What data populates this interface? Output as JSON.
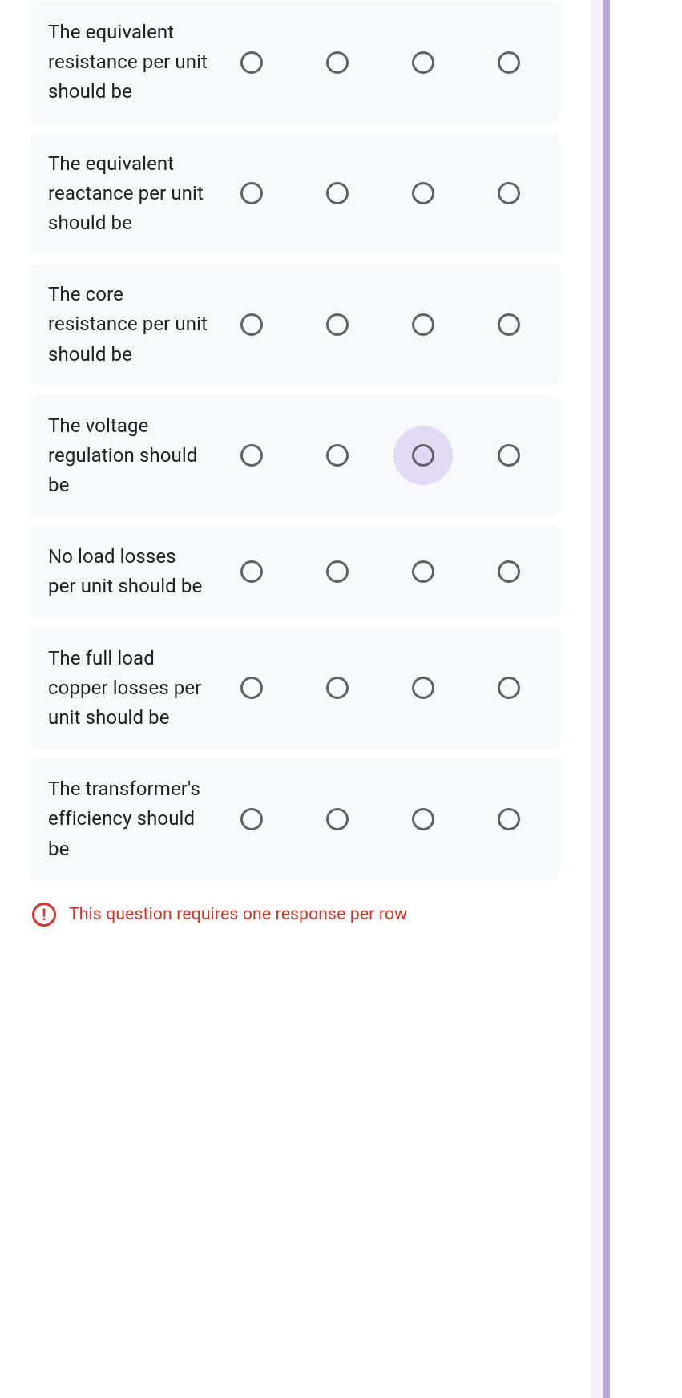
{
  "colors": {
    "row_bg": "#f8f9fa",
    "text": "#202124",
    "radio_border": "#5f6368",
    "ripple": "#d6c8f0",
    "accent": "#673ab7",
    "error": "#d93025",
    "page_bg": "#ffffff"
  },
  "grid": {
    "num_options": 4,
    "rows": [
      {
        "label": "The equivalent resistance per unit should be",
        "highlighted_option_index": null
      },
      {
        "label": "The equivalent reactance per unit should be",
        "highlighted_option_index": null
      },
      {
        "label": "The core resistance per unit should be",
        "highlighted_option_index": null
      },
      {
        "label": "The voltage regulation should be",
        "highlighted_option_index": 2
      },
      {
        "label": "No load losses per unit should be",
        "highlighted_option_index": null
      },
      {
        "label": "The full load copper losses per unit should be",
        "highlighted_option_index": null
      },
      {
        "label": "The transformer's efficiency should be",
        "highlighted_option_index": null
      }
    ]
  },
  "error": {
    "icon_glyph": "!",
    "message": "This question requires one response per row"
  }
}
